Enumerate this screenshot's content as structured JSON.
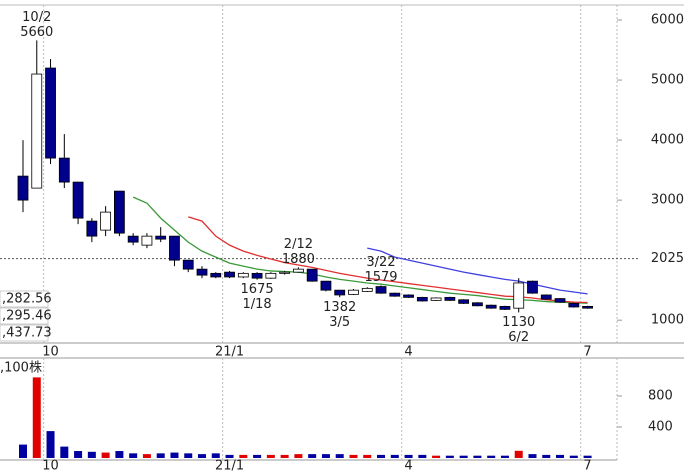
{
  "chart_data": [
    {
      "type": "candlestick",
      "categories": [
        null,
        null,
        "10",
        null,
        null,
        null,
        null,
        null,
        null,
        null,
        null,
        null,
        null,
        null,
        null,
        "21/1",
        null,
        null,
        null,
        null,
        null,
        null,
        null,
        null,
        null,
        null,
        null,
        null,
        "4",
        null,
        null,
        null,
        null,
        null,
        null,
        null,
        null,
        null,
        null,
        null,
        null,
        "7"
      ],
      "open": [
        3400,
        3200,
        5200,
        3700,
        3300,
        2650,
        2500,
        3150,
        2400,
        2250,
        2400,
        2400,
        2000,
        1850,
        1780,
        1800,
        1720,
        1780,
        1700,
        1780,
        1800,
        1850,
        1650,
        1500,
        1430,
        1480,
        1560,
        1450,
        1420,
        1380,
        1330,
        1380,
        1340,
        1290,
        1250,
        1230,
        1200,
        1650,
        1420,
        1360,
        1280,
        1230
      ],
      "high": [
        4000,
        5660,
        5350,
        4100,
        3300,
        2700,
        2900,
        3150,
        2450,
        2450,
        2550,
        2400,
        2000,
        1900,
        1800,
        1820,
        1800,
        1800,
        1800,
        1820,
        1880,
        1850,
        1650,
        1500,
        1520,
        1550,
        1579,
        1460,
        1430,
        1390,
        1380,
        1390,
        1350,
        1300,
        1260,
        1240,
        1700,
        1660,
        1430,
        1370,
        1290,
        1240
      ],
      "low": [
        2800,
        3200,
        3600,
        3200,
        2600,
        2300,
        2400,
        2400,
        2250,
        2200,
        2300,
        1900,
        1800,
        1700,
        1700,
        1700,
        1700,
        1675,
        1690,
        1760,
        1790,
        1640,
        1480,
        1382,
        1420,
        1470,
        1440,
        1390,
        1370,
        1310,
        1320,
        1320,
        1270,
        1230,
        1190,
        1170,
        1130,
        1440,
        1340,
        1290,
        1210,
        1190
      ],
      "close": [
        3000,
        5100,
        3700,
        3300,
        2700,
        2400,
        2800,
        2450,
        2300,
        2400,
        2350,
        2000,
        1850,
        1750,
        1720,
        1720,
        1780,
        1700,
        1780,
        1800,
        1850,
        1650,
        1500,
        1420,
        1500,
        1530,
        1450,
        1400,
        1380,
        1320,
        1370,
        1330,
        1280,
        1240,
        1200,
        1180,
        1620,
        1450,
        1350,
        1300,
        1220,
        1200
      ],
      "up_color": "#ffffff",
      "down_color": "#00008b",
      "ylim": [
        620,
        6250
      ],
      "yticks": [
        1000,
        3000,
        4000,
        5000,
        6000
      ],
      "ref_line": {
        "value": 2025,
        "label": "2025",
        "color": "#e00000"
      },
      "series": [
        {
          "name": ",282.56",
          "color": "#3a9a3a",
          "values": [
            null,
            null,
            null,
            null,
            null,
            null,
            null,
            null,
            3050,
            2950,
            2700,
            2500,
            2300,
            2150,
            2050,
            1950,
            1900,
            1850,
            1820,
            1810,
            1800,
            1770,
            1720,
            1680,
            1650,
            1620,
            1600,
            1570,
            1540,
            1510,
            1480,
            1450,
            1430,
            1410,
            1380,
            1350,
            1340,
            1330,
            1310,
            1300,
            1290,
            1283
          ]
        },
        {
          "name": ",295.46",
          "color": "#e03030",
          "values": [
            null,
            null,
            null,
            null,
            null,
            null,
            null,
            null,
            null,
            null,
            null,
            null,
            2720,
            2650,
            2400,
            2250,
            2150,
            2080,
            2020,
            1960,
            1920,
            1880,
            1830,
            1780,
            1740,
            1700,
            1670,
            1640,
            1610,
            1580,
            1550,
            1520,
            1490,
            1460,
            1430,
            1400,
            1390,
            1370,
            1340,
            1320,
            1300,
            1295
          ]
        },
        {
          "name": ",437.73",
          "color": "#4040e0",
          "values": [
            null,
            null,
            null,
            null,
            null,
            null,
            null,
            null,
            null,
            null,
            null,
            null,
            null,
            null,
            null,
            null,
            null,
            null,
            null,
            null,
            null,
            null,
            null,
            null,
            null,
            2200,
            2150,
            2050,
            2000,
            1950,
            1900,
            1850,
            1800,
            1760,
            1720,
            1680,
            1650,
            1600,
            1550,
            1500,
            1470,
            1438
          ]
        }
      ],
      "annotations": [
        {
          "index": 1,
          "anchor": "high",
          "lines": [
            "10/2",
            "5660"
          ]
        },
        {
          "index": 20,
          "anchor": "high",
          "lines": [
            "2/12",
            "1880"
          ]
        },
        {
          "index": 17,
          "anchor": "low",
          "lines": [
            "1675",
            "1/18"
          ]
        },
        {
          "index": 23,
          "anchor": "low",
          "lines": [
            "1382",
            "3/5"
          ]
        },
        {
          "index": 26,
          "anchor": "high",
          "lines": [
            "3/22",
            "1579"
          ]
        },
        {
          "index": 36,
          "anchor": "low",
          "lines": [
            "1130",
            "6/2"
          ]
        }
      ]
    },
    {
      "type": "bar",
      "title": ",100株",
      "categories": [
        null,
        null,
        "10",
        null,
        null,
        null,
        null,
        null,
        null,
        null,
        null,
        null,
        null,
        null,
        null,
        "21/1",
        null,
        null,
        null,
        null,
        null,
        null,
        null,
        null,
        null,
        null,
        null,
        null,
        "4",
        null,
        null,
        null,
        null,
        null,
        null,
        null,
        null,
        null,
        null,
        null,
        null,
        "7"
      ],
      "values": [
        173,
        1040,
        347,
        147,
        90,
        80,
        70,
        90,
        60,
        50,
        60,
        70,
        60,
        50,
        60,
        40,
        40,
        40,
        40,
        40,
        50,
        50,
        50,
        50,
        40,
        40,
        40,
        40,
        40,
        40,
        30,
        30,
        30,
        30,
        30,
        30,
        93,
        50,
        40,
        40,
        30,
        30
      ],
      "colors": [
        "#0000a0",
        "#e00000",
        "#0000a0",
        "#0000a0",
        "#0000a0",
        "#0000a0",
        "#e00000",
        "#0000a0",
        "#0000a0",
        "#e00000",
        "#0000a0",
        "#0000a0",
        "#0000a0",
        "#0000a0",
        "#0000a0",
        "#0000a0",
        "#e00000",
        "#0000a0",
        "#e00000",
        "#e00000",
        "#e00000",
        "#0000a0",
        "#0000a0",
        "#0000a0",
        "#e00000",
        "#e00000",
        "#0000a0",
        "#0000a0",
        "#0000a0",
        "#0000a0",
        "#e00000",
        "#0000a0",
        "#0000a0",
        "#0000a0",
        "#0000a0",
        "#0000a0",
        "#e00000",
        "#0000a0",
        "#0000a0",
        "#0000a0",
        "#0000a0",
        "#0000a0"
      ],
      "ylim": [
        0,
        1290
      ],
      "yticks": [
        400,
        800
      ]
    }
  ]
}
